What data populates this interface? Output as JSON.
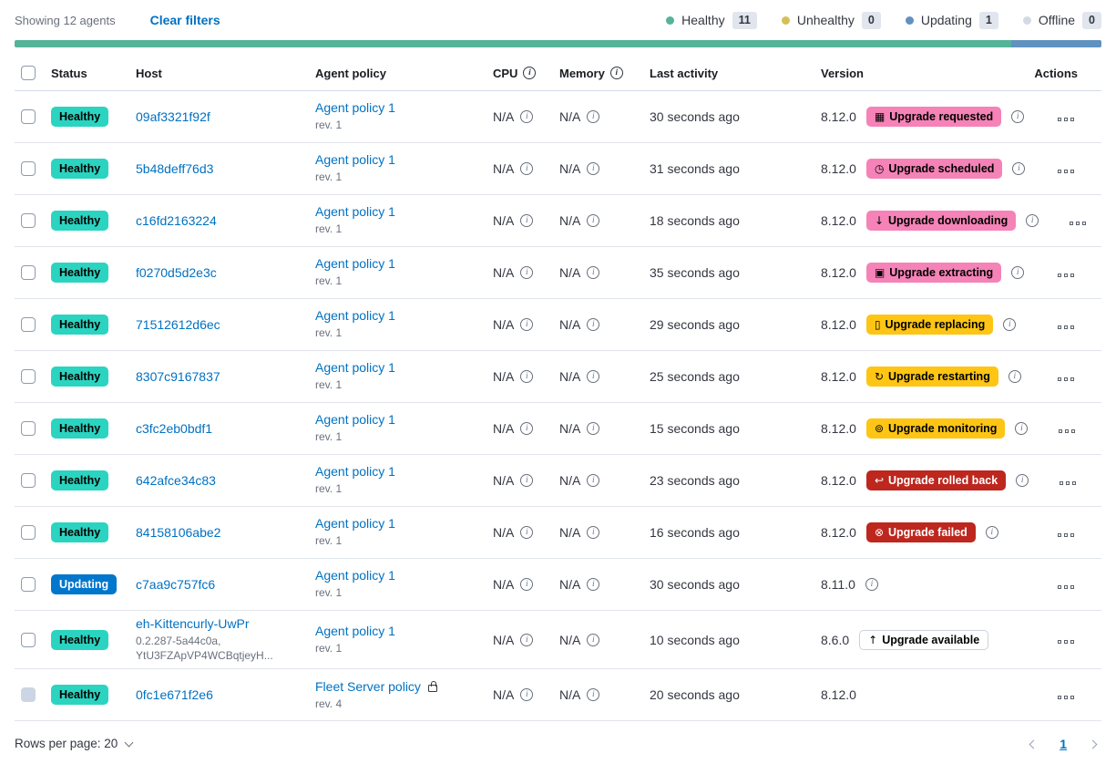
{
  "colors": {
    "link": "#0071C2",
    "healthy_badge": "#2BD4C0",
    "updating_badge": "#0077CC",
    "pink_badge": "#F583B7",
    "warning_badge": "#FEC514",
    "danger_badge": "#BD271E"
  },
  "toolbar": {
    "showing": "Showing 12 agents",
    "clear_filters": "Clear filters",
    "legend": [
      {
        "label": "Healthy",
        "count": "11",
        "color": "#54B399"
      },
      {
        "label": "Unhealthy",
        "count": "0",
        "color": "#D6BF57"
      },
      {
        "label": "Updating",
        "count": "1",
        "color": "#6092C0"
      },
      {
        "label": "Offline",
        "count": "0",
        "color": "#D3DAE6"
      }
    ]
  },
  "status_bar": {
    "segments": [
      {
        "name": "healthy-segment",
        "color": "#54B399",
        "fraction": 0.9167
      },
      {
        "name": "updating-segment",
        "color": "#6092C0",
        "fraction": 0.0833
      }
    ]
  },
  "table": {
    "headers": [
      "Status",
      "Host",
      "Agent policy",
      "CPU",
      "Memory",
      "Last activity",
      "Version",
      "Actions"
    ],
    "rows": [
      {
        "status": {
          "label": "Healthy",
          "variant": "healthy"
        },
        "host": {
          "name": "09af3321f92f",
          "sub": null
        },
        "policy": {
          "name": "Agent policy 1",
          "rev": "rev. 1",
          "locked": false
        },
        "cpu": "N/A",
        "memory": "N/A",
        "last_activity": "30 seconds ago",
        "version": "8.12.0",
        "upgrade": {
          "label": "Upgrade requested",
          "variant": "pink",
          "icon": "calendar-icon",
          "glyph": "▦"
        },
        "version_info": true,
        "checkbox_state": "enabled"
      },
      {
        "status": {
          "label": "Healthy",
          "variant": "healthy"
        },
        "host": {
          "name": "5b48deff76d3",
          "sub": null
        },
        "policy": {
          "name": "Agent policy 1",
          "rev": "rev. 1",
          "locked": false
        },
        "cpu": "N/A",
        "memory": "N/A",
        "last_activity": "31 seconds ago",
        "version": "8.12.0",
        "upgrade": {
          "label": "Upgrade scheduled",
          "variant": "pink",
          "icon": "clock-icon",
          "glyph": "◷"
        },
        "version_info": true,
        "checkbox_state": "enabled"
      },
      {
        "status": {
          "label": "Healthy",
          "variant": "healthy"
        },
        "host": {
          "name": "c16fd2163224",
          "sub": null
        },
        "policy": {
          "name": "Agent policy 1",
          "rev": "rev. 1",
          "locked": false
        },
        "cpu": "N/A",
        "memory": "N/A",
        "last_activity": "18 seconds ago",
        "version": "8.12.0",
        "upgrade": {
          "label": "Upgrade downloading",
          "variant": "pink",
          "icon": "download-icon",
          "glyph": "↓"
        },
        "version_info": true,
        "checkbox_state": "enabled"
      },
      {
        "status": {
          "label": "Healthy",
          "variant": "healthy"
        },
        "host": {
          "name": "f0270d5d2e3c",
          "sub": null
        },
        "policy": {
          "name": "Agent policy 1",
          "rev": "rev. 1",
          "locked": false
        },
        "cpu": "N/A",
        "memory": "N/A",
        "last_activity": "35 seconds ago",
        "version": "8.12.0",
        "upgrade": {
          "label": "Upgrade extracting",
          "variant": "pink",
          "icon": "package-icon",
          "glyph": "▣"
        },
        "version_info": true,
        "checkbox_state": "enabled"
      },
      {
        "status": {
          "label": "Healthy",
          "variant": "healthy"
        },
        "host": {
          "name": "71512612d6ec",
          "sub": null
        },
        "policy": {
          "name": "Agent policy 1",
          "rev": "rev. 1",
          "locked": false
        },
        "cpu": "N/A",
        "memory": "N/A",
        "last_activity": "29 seconds ago",
        "version": "8.12.0",
        "upgrade": {
          "label": "Upgrade replacing",
          "variant": "warning",
          "icon": "document-icon",
          "glyph": "▯"
        },
        "version_info": true,
        "checkbox_state": "enabled"
      },
      {
        "status": {
          "label": "Healthy",
          "variant": "healthy"
        },
        "host": {
          "name": "8307c9167837",
          "sub": null
        },
        "policy": {
          "name": "Agent policy 1",
          "rev": "rev. 1",
          "locked": false
        },
        "cpu": "N/A",
        "memory": "N/A",
        "last_activity": "25 seconds ago",
        "version": "8.12.0",
        "upgrade": {
          "label": "Upgrade restarting",
          "variant": "warning",
          "icon": "refresh-icon",
          "glyph": "↻"
        },
        "version_info": true,
        "checkbox_state": "enabled"
      },
      {
        "status": {
          "label": "Healthy",
          "variant": "healthy"
        },
        "host": {
          "name": "c3fc2eb0bdf1",
          "sub": null
        },
        "policy": {
          "name": "Agent policy 1",
          "rev": "rev. 1",
          "locked": false
        },
        "cpu": "N/A",
        "memory": "N/A",
        "last_activity": "15 seconds ago",
        "version": "8.12.0",
        "upgrade": {
          "label": "Upgrade monitoring",
          "variant": "warning",
          "icon": "inspect-icon",
          "glyph": "⊚"
        },
        "version_info": true,
        "checkbox_state": "enabled"
      },
      {
        "status": {
          "label": "Healthy",
          "variant": "healthy"
        },
        "host": {
          "name": "642afce34c83",
          "sub": null
        },
        "policy": {
          "name": "Agent policy 1",
          "rev": "rev. 1",
          "locked": false
        },
        "cpu": "N/A",
        "memory": "N/A",
        "last_activity": "23 seconds ago",
        "version": "8.12.0",
        "upgrade": {
          "label": "Upgrade rolled back",
          "variant": "danger",
          "icon": "return-arrow-icon",
          "glyph": "↩"
        },
        "version_info": true,
        "checkbox_state": "enabled"
      },
      {
        "status": {
          "label": "Healthy",
          "variant": "healthy"
        },
        "host": {
          "name": "84158106abe2",
          "sub": null
        },
        "policy": {
          "name": "Agent policy 1",
          "rev": "rev. 1",
          "locked": false
        },
        "cpu": "N/A",
        "memory": "N/A",
        "last_activity": "16 seconds ago",
        "version": "8.12.0",
        "upgrade": {
          "label": "Upgrade failed",
          "variant": "danger",
          "icon": "error-cross-icon",
          "glyph": "⊗"
        },
        "version_info": true,
        "checkbox_state": "enabled"
      },
      {
        "status": {
          "label": "Updating",
          "variant": "updating"
        },
        "host": {
          "name": "c7aa9c757fc6",
          "sub": null
        },
        "policy": {
          "name": "Agent policy 1",
          "rev": "rev. 1",
          "locked": false
        },
        "cpu": "N/A",
        "memory": "N/A",
        "last_activity": "30 seconds ago",
        "version": "8.11.0",
        "upgrade": null,
        "version_info": true,
        "checkbox_state": "enabled"
      },
      {
        "status": {
          "label": "Healthy",
          "variant": "healthy"
        },
        "host": {
          "name": "eh-Kittencurly-UwPr",
          "sub": "0.2.287-5a44c0a,\nYtU3FZApVP4WCBqtjeyH..."
        },
        "policy": {
          "name": "Agent policy 1",
          "rev": "rev. 1",
          "locked": false
        },
        "cpu": "N/A",
        "memory": "N/A",
        "last_activity": "10 seconds ago",
        "version": "8.6.0",
        "upgrade": {
          "label": "Upgrade available",
          "variant": "hollow",
          "icon": "arrow-up-icon",
          "glyph": "↑"
        },
        "version_info": false,
        "checkbox_state": "enabled"
      },
      {
        "status": {
          "label": "Healthy",
          "variant": "healthy"
        },
        "host": {
          "name": "0fc1e671f2e6",
          "sub": null
        },
        "policy": {
          "name": "Fleet Server policy",
          "rev": "rev. 4",
          "locked": true
        },
        "cpu": "N/A",
        "memory": "N/A",
        "last_activity": "20 seconds ago",
        "version": "8.12.0",
        "upgrade": null,
        "version_info": false,
        "checkbox_state": "disabled"
      }
    ]
  },
  "footer": {
    "rows_per_page": "Rows per page: 20",
    "page": "1"
  }
}
